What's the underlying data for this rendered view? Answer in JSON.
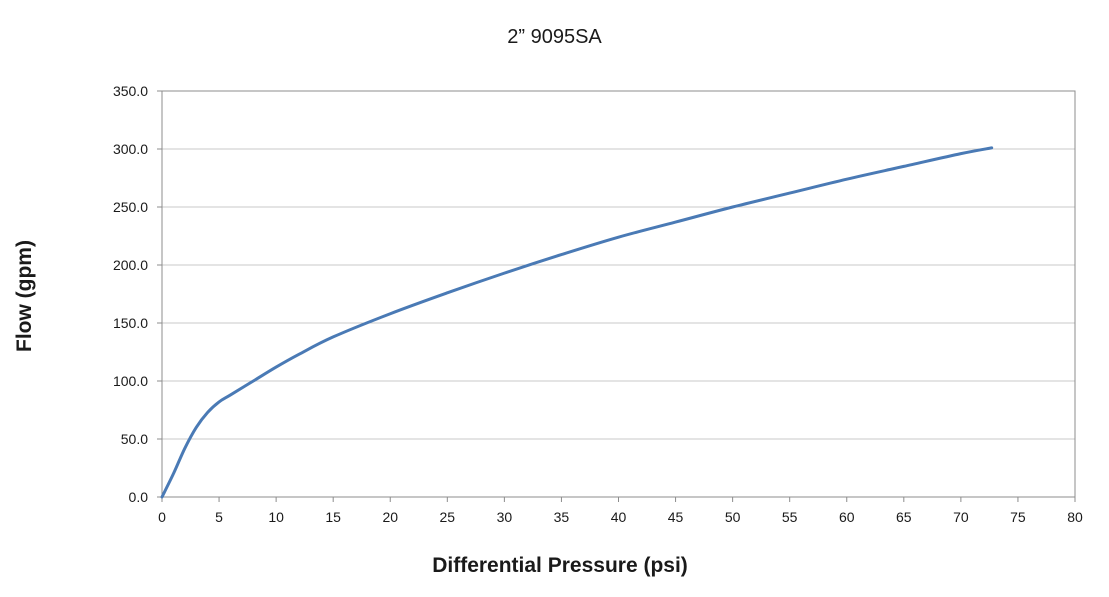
{
  "chart_data": {
    "type": "line",
    "title": "2” 9095SA",
    "xlabel": "Differential Pressure (psi)",
    "ylabel": "Flow (gpm)",
    "xlim": [
      0,
      80
    ],
    "ylim": [
      0,
      350
    ],
    "x_ticks": [
      "0",
      "5",
      "10",
      "15",
      "20",
      "25",
      "30",
      "35",
      "40",
      "45",
      "50",
      "55",
      "60",
      "65",
      "70",
      "75",
      "80"
    ],
    "y_ticks": [
      "0.0",
      "50.0",
      "100.0",
      "150.0",
      "200.0",
      "250.0",
      "300.0",
      "350.0"
    ],
    "grid": "horizontal",
    "legend": "none",
    "line_color": "#4a7ab5",
    "series": [
      {
        "x": [
          0,
          1,
          2,
          3,
          4,
          5,
          6,
          8,
          10,
          12,
          15,
          20,
          25,
          30,
          35,
          40,
          45,
          50,
          55,
          60,
          65,
          70,
          72.7
        ],
        "y": [
          0,
          20,
          42,
          60,
          73,
          82,
          88,
          100,
          112,
          123,
          138,
          158,
          176,
          193,
          209,
          224,
          237,
          250,
          262,
          274,
          285,
          296,
          301
        ]
      }
    ]
  }
}
